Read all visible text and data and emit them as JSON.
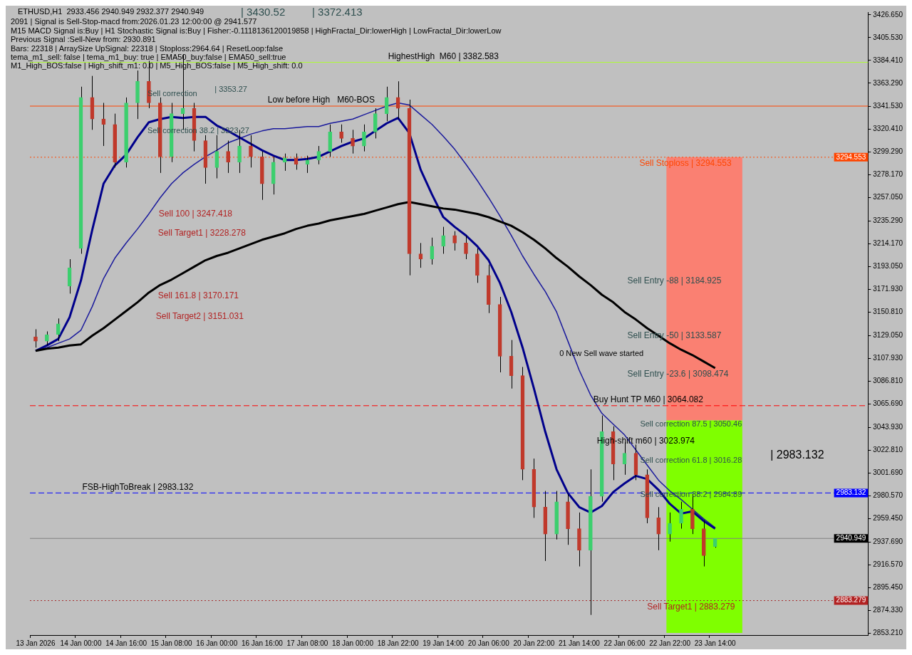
{
  "chart_data": {
    "type": "candlestick",
    "title": "ETHUSD,H1  2933.456 2940.949 2932.377 2940.949",
    "marker": "none",
    "categories": [
      "13 Jan 2026",
      null,
      null,
      null,
      "14 Jan 00:00",
      null,
      null,
      null,
      "14 Jan 16:00",
      null,
      null,
      null,
      "15 Jan 08:00",
      null,
      null,
      null,
      "16 Jan 00:00",
      null,
      null,
      null,
      "16 Jan 16:00",
      null,
      null,
      null,
      "17 Jan 08:00",
      null,
      null,
      null,
      "18 Jan 00:00",
      null,
      null,
      null,
      "18 Jan 22:00",
      null,
      null,
      null,
      "19 Jan 14:00",
      null,
      null,
      null,
      "20 Jan 06:00",
      null,
      null,
      null,
      "20 Jan 22:00",
      null,
      null,
      null,
      "21 Jan 14:00",
      null,
      null,
      null,
      "22 Jan 06:00",
      null,
      null,
      null,
      "22 Jan 22:00",
      null,
      null,
      null,
      "23 Jan 14:00",
      null,
      null,
      null,
      null,
      null,
      null,
      null,
      null,
      null,
      null,
      null,
      null,
      null
    ],
    "ohlc": [
      [
        3128,
        3135,
        3118,
        3124
      ],
      [
        3124,
        3133,
        3120,
        3130
      ],
      [
        3130,
        3145,
        3124,
        3140
      ],
      [
        3175,
        3200,
        3168,
        3192
      ],
      [
        3210,
        3360,
        3205,
        3350
      ],
      [
        3350,
        3370,
        3320,
        3330
      ],
      [
        3330,
        3345,
        3305,
        3325
      ],
      [
        3325,
        3335,
        3285,
        3290
      ],
      [
        3290,
        3350,
        3285,
        3345
      ],
      [
        3345,
        3375,
        3330,
        3365
      ],
      [
        3365,
        3384,
        3340,
        3345
      ],
      [
        3345,
        3350,
        3280,
        3295
      ],
      [
        3295,
        3345,
        3290,
        3335
      ],
      [
        3335,
        3390,
        3320,
        3340
      ],
      [
        3340,
        3345,
        3300,
        3310
      ],
      [
        3310,
        3315,
        3270,
        3285
      ],
      [
        3285,
        3315,
        3275,
        3300
      ],
      [
        3300,
        3310,
        3280,
        3290
      ],
      [
        3290,
        3320,
        3280,
        3305
      ],
      [
        3305,
        3315,
        3285,
        3295
      ],
      [
        3295,
        3300,
        3255,
        3270
      ],
      [
        3270,
        3295,
        3260,
        3290
      ],
      [
        3290,
        3298,
        3282,
        3294
      ],
      [
        3294,
        3298,
        3283,
        3288
      ],
      [
        3288,
        3296,
        3280,
        3292
      ],
      [
        3292,
        3305,
        3288,
        3300
      ],
      [
        3300,
        3325,
        3295,
        3318
      ],
      [
        3318,
        3325,
        3308,
        3312
      ],
      [
        3312,
        3320,
        3298,
        3305
      ],
      [
        3305,
        3325,
        3300,
        3318
      ],
      [
        3318,
        3340,
        3312,
        3335
      ],
      [
        3335,
        3360,
        3328,
        3350
      ],
      [
        3350,
        3365,
        3330,
        3340
      ],
      [
        3340,
        3348,
        3185,
        3205
      ],
      [
        3205,
        3215,
        3192,
        3200
      ],
      [
        3200,
        3220,
        3195,
        3212
      ],
      [
        3212,
        3230,
        3205,
        3222
      ],
      [
        3222,
        3226,
        3208,
        3215
      ],
      [
        3215,
        3222,
        3200,
        3205
      ],
      [
        3205,
        3210,
        3178,
        3185
      ],
      [
        3185,
        3195,
        3150,
        3158
      ],
      [
        3158,
        3165,
        3095,
        3110
      ],
      [
        3110,
        3125,
        3080,
        3092
      ],
      [
        3092,
        3100,
        2995,
        3005
      ],
      [
        3005,
        3015,
        2960,
        2970
      ],
      [
        2970,
        2985,
        2920,
        2945
      ],
      [
        2945,
        2985,
        2940,
        2975
      ],
      [
        2975,
        2982,
        2935,
        2950
      ],
      [
        2950,
        2965,
        2915,
        2930
      ],
      [
        2930,
        3005,
        2870,
        2980
      ],
      [
        2980,
        3055,
        2975,
        3040
      ],
      [
        3040,
        3045,
        2995,
        3010
      ],
      [
        3010,
        3030,
        3000,
        3020
      ],
      [
        3020,
        3028,
        2995,
        3000
      ],
      [
        3000,
        3005,
        2955,
        2960
      ],
      [
        2960,
        2970,
        2930,
        2945
      ],
      [
        2945,
        2965,
        2938,
        2955
      ],
      [
        2955,
        2975,
        2950,
        2968
      ],
      [
        2968,
        2982,
        2945,
        2950
      ],
      [
        2950,
        2958,
        2915,
        2925
      ],
      [
        2933.456,
        2940.949,
        2932.377,
        2940.949
      ],
      null,
      null,
      null,
      null,
      null,
      null,
      null,
      null,
      null,
      null,
      null,
      null,
      null
    ],
    "colors": [
      "#c0392b",
      "#3ccf6e",
      "#3ccf6e",
      "#3ccf6e",
      "#3ccf6e",
      "#c0392b",
      "#c0392b",
      "#c0392b",
      "#3ccf6e",
      "#3ccf6e",
      "#c0392b",
      "#c0392b",
      "#3ccf6e",
      "#3ccf6e",
      "#c0392b",
      "#c0392b",
      "#3ccf6e",
      "#c0392b",
      "#3ccf6e",
      "#c0392b",
      "#c0392b",
      "#3ccf6e",
      "#3ccf6e",
      "#c0392b",
      "#3ccf6e",
      "#3ccf6e",
      "#3ccf6e",
      "#c0392b",
      "#c0392b",
      "#3ccf6e",
      "#3ccf6e",
      "#3ccf6e",
      "#c0392b",
      "#c0392b",
      "#c0392b",
      "#3ccf6e",
      "#3ccf6e",
      "#c0392b",
      "#c0392b",
      "#c0392b",
      "#c0392b",
      "#c0392b",
      "#c0392b",
      "#c0392b",
      "#c0392b",
      "#c0392b",
      "#3ccf6e",
      "#c0392b",
      "#c0392b",
      "#3ccf6e",
      "#3ccf6e",
      "#c0392b",
      "#3ccf6e",
      "#c0392b",
      "#c0392b",
      "#c0392b",
      "#3ccf6e",
      "#3ccf6e",
      "#c0392b",
      "#c0392b",
      "#3ccf6e",
      null,
      null,
      null,
      null,
      null,
      null,
      null,
      null,
      null,
      null,
      null,
      null,
      null
    ],
    "series": [
      {
        "type": "line",
        "color": "#000000",
        "values": [
          3115,
          3117,
          3118,
          3120,
          3121,
          3129,
          3136,
          3144,
          3152,
          3160,
          3169,
          3176,
          3181,
          3187,
          3193,
          3199,
          3203,
          3206,
          3210,
          3214,
          3218,
          3221,
          3224,
          3228,
          3231,
          3233,
          3236,
          3238,
          3240,
          3242,
          3245,
          3248,
          3251,
          3253,
          3251,
          3249,
          3247,
          3246,
          3244,
          3242,
          3239,
          3235,
          3231,
          3225,
          3218,
          3210,
          3201,
          3193,
          3184,
          3176,
          3167,
          3160,
          3151,
          3144,
          3136,
          3129,
          3122,
          3116,
          3111,
          3105,
          3099,
          null,
          null,
          null,
          null,
          null,
          null,
          null,
          null,
          null,
          null,
          null,
          null,
          null
        ]
      },
      {
        "type": "line",
        "color": "#00008b",
        "values": [
          3115,
          3120,
          3126,
          3146,
          3180,
          3227,
          3270,
          3287,
          3297,
          3313,
          3327,
          3330,
          3332,
          3331,
          3332,
          3332,
          3324,
          3319,
          3313,
          3307,
          3301,
          3296,
          3292,
          3292,
          3293,
          3295,
          3300,
          3305,
          3309,
          3312,
          3319,
          3326,
          3331,
          3317,
          3283,
          3260,
          3239,
          3230,
          3222,
          3212,
          3199,
          3178,
          3151,
          3118,
          3080,
          3040,
          3005,
          2983,
          2970,
          2965,
          2971,
          2984,
          2992,
          2999,
          2996,
          2986,
          2973,
          2964,
          2966,
          2957,
          2950,
          null,
          null,
          null,
          null,
          null,
          null,
          null,
          null,
          null,
          null,
          null,
          null,
          null
        ]
      },
      {
        "type": "line",
        "color": "#1a1a9c",
        "values": [
          3115,
          3118,
          3122,
          3126,
          3134,
          3156,
          3182,
          3201,
          3215,
          3228,
          3242,
          3257,
          3270,
          3280,
          3288,
          3295,
          3301,
          3308,
          3312,
          3316,
          3319,
          3321,
          3321,
          3322,
          3323,
          3323,
          3326,
          3328,
          3330,
          3334,
          3338,
          3342,
          3345,
          3343,
          3334,
          3325,
          3314,
          3302,
          3288,
          3273,
          3257,
          3240,
          3222,
          3203,
          3186,
          3170,
          3151,
          3124,
          3097,
          3074,
          3057,
          3047,
          3037,
          3023,
          3009,
          2995,
          2985,
          2977,
          2968,
          2959,
          2951,
          null,
          null,
          null,
          null,
          null,
          null,
          null,
          null,
          null,
          null,
          null,
          null,
          null
        ]
      }
    ],
    "ylim": [
      2851.3,
      3429.2
    ],
    "yticks": [
      {
        "value": 3426.65,
        "label": "3426.650"
      },
      {
        "value": 3405.53,
        "label": "3405.530"
      },
      {
        "value": 3384.41,
        "label": "3384.410"
      },
      {
        "value": 3363.29,
        "label": "3363.290"
      },
      {
        "value": 3341.53,
        "label": "3341.530"
      },
      {
        "value": 3320.41,
        "label": "3320.410"
      },
      {
        "value": 3299.29,
        "label": "3299.290"
      },
      {
        "value": 3278.17,
        "label": "3278.170"
      },
      {
        "value": 3257.05,
        "label": "3257.050"
      },
      {
        "value": 3235.29,
        "label": "3235.290"
      },
      {
        "value": 3214.17,
        "label": "3214.170"
      },
      {
        "value": 3193.05,
        "label": "3193.050"
      },
      {
        "value": 3171.93,
        "label": "3171.930"
      },
      {
        "value": 3150.81,
        "label": "3150.810"
      },
      {
        "value": 3129.05,
        "label": "3129.050"
      },
      {
        "value": 3107.93,
        "label": "3107.930"
      },
      {
        "value": 3086.81,
        "label": "3086.810"
      },
      {
        "value": 3065.69,
        "label": "3065.690"
      },
      {
        "value": 3043.93,
        "label": "3043.930"
      },
      {
        "value": 3022.81,
        "label": "3022.810"
      },
      {
        "value": 3001.69,
        "label": "3001.690"
      },
      {
        "value": 2980.57,
        "label": "2980.570"
      },
      {
        "value": 2959.45,
        "label": "2959.450"
      },
      {
        "value": 2937.69,
        "label": "2937.690"
      },
      {
        "value": 2916.57,
        "label": "2916.570"
      },
      {
        "value": 2895.45,
        "label": "2895.450"
      },
      {
        "value": 2874.33,
        "label": "2874.330"
      },
      {
        "value": 2853.21,
        "label": "2853.210"
      }
    ],
    "ref_lines": [
      {
        "axis": "y",
        "value": 3382.583,
        "label": "HighestHigh  M60 | 3382.583",
        "color": "#adff2f",
        "line_style": "solid"
      },
      {
        "axis": "y",
        "value": 3342,
        "label": "Low before High   M60-BOS",
        "color": "#ff4500",
        "line_style": "solid"
      },
      {
        "axis": "y",
        "value": 3294.553,
        "label": "Sell Stoploss | 3294.553",
        "color": "#ff4500",
        "line_style": "dotted"
      },
      {
        "axis": "y",
        "value": 3064.082,
        "label": "Buy Hunt TP M60 | 3064.082",
        "color": "#ff0000",
        "line_style": "dashed"
      },
      {
        "axis": "y",
        "value": 2983.132,
        "label": "FSB-HighToBreak | 2983.132",
        "color": "#0000ff",
        "line_style": "dashed"
      },
      {
        "axis": "y",
        "value": 2940.949,
        "color": "#808080",
        "line_style": "solid"
      },
      {
        "axis": "y",
        "value": 2883.279,
        "label": "Sell Target1 | 2883.279",
        "color": "#a52a2a",
        "line_style": "dotted"
      }
    ],
    "bands": [
      {
        "axis": "y",
        "from": 3050.46,
        "to": 3294.553,
        "color": "#fa8072"
      },
      {
        "axis": "y",
        "from": 2853.21,
        "to": 3050.46,
        "color": "#7fff00"
      }
    ],
    "annotations": [
      "2091 | Signal is Sell-Stop-macd from:2026.01.23 12:00:00 @ 2941.577",
      "M15 MACD Signal is:Buy | H1 Stochastic Signal is:Buy | Fisher:-0.1118136120019858 | HighFractal_Dir:lowerHigh | LowFractal_Dir:lowerLow",
      "Previous Signal :Sell-New from: 2930.891",
      "Bars: 22318 | ArraySize UpSignal: 22318 | Stoploss:2964.64 | ResetLoop:false",
      "tema_m1_sell: false | tema_m1_buy: true | EMA50_buy:false | EMA50_sell:true",
      "M1_High_BOS:false | High_shift_m1: 0.0 | M5_High_BOS:false | M5_High_shift: 0.0",
      "| 3430.52",
      "| 3372.413",
      "Sell correction",
      "| 3353.27",
      "Sell correction 38.2 | 3323.27",
      "Sell 100 | 3247.418",
      "Sell Target1 | 3228.278",
      "Sell 161.8 | 3170.171",
      "Sell Target2 | 3151.031",
      "Sell Entry -88 | 3184.925",
      "Sell Entry -50 | 3133.587",
      "Sell Entry -23.6 | 3098.474",
      "0 New Sell wave started",
      "Sell correction 87.5 | 3050.46",
      "High-shift m60 | 3023.974",
      "| 2983.132",
      "Sell correction 61.8 | 3016.28",
      "Sell correction 38.2 | 2984.89",
      {
        "text": "3294.553",
        "y": 3294.553
      },
      {
        "text": "2983.132",
        "y": 2983.132
      },
      {
        "text": "2940.949",
        "y": 2940.949
      },
      {
        "text": "2883.279",
        "y": 2883.279
      }
    ]
  }
}
